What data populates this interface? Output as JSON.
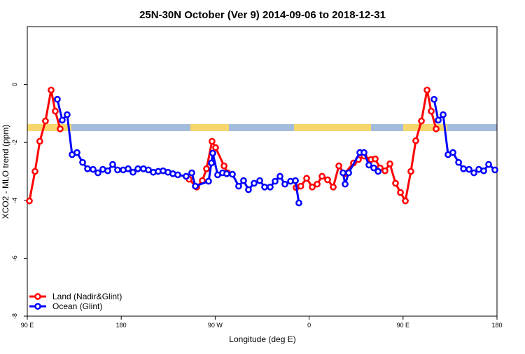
{
  "chart_data": {
    "type": "line",
    "title": "25N-30N October (Ver 9)   2014-09-06 to 2018-12-31",
    "x_label": "Longitude (deg E)",
    "y_label": "XCO2 - MLO trend (ppm)",
    "xlim": [
      90,
      540
    ],
    "xticks": [
      {
        "value": 90,
        "label": "90 E"
      },
      {
        "value": 180,
        "label": "180"
      },
      {
        "value": 270,
        "label": "90 W"
      },
      {
        "value": 360,
        "label": "0"
      },
      {
        "value": 450,
        "label": "90 E"
      },
      {
        "value": 540,
        "label": "180"
      }
    ],
    "ylim": [
      -8,
      2
    ],
    "yticks": [
      -8,
      -6,
      -4,
      -2,
      0
    ],
    "legend": "bottom-left",
    "series": [
      {
        "name": "Land (Nadir&Glint)",
        "color": "#ff0000",
        "x": [
          92,
          97.4,
          102,
          107.4,
          112.8,
          116.8,
          121.5,
          null,
          245,
          252.3,
          257.7,
          261.7,
          267,
          270.4,
          278.5,
          281.8,
          null,
          347.5,
          352,
          357.6,
          363,
          367.7,
          372.4,
          377.7,
          383.1,
          388.5,
          393.8,
          402.5,
          407.2,
          412.6,
          419.3,
          423.3,
          428,
          432.7,
          437.4,
          442.8,
          447.5,
          452.2,
          457.5,
          462.2,
          467.6,
          473,
          477,
          481.7
        ],
        "values": [
          -4.02,
          -3.0,
          -1.96,
          -1.26,
          -0.19,
          -0.92,
          -1.53,
          null,
          -3.27,
          -3.54,
          -3.32,
          -2.91,
          -1.96,
          -2.18,
          -2.81,
          -3.05,
          null,
          -3.56,
          -3.51,
          -3.24,
          -3.54,
          -3.44,
          -3.17,
          -3.29,
          -3.54,
          -2.81,
          -3.08,
          -2.71,
          -2.59,
          -2.47,
          -2.59,
          -2.57,
          -2.88,
          -2.98,
          -2.74,
          -3.41,
          -3.73,
          -4.02,
          -3.0,
          -1.94,
          -1.26,
          -0.19,
          -0.92,
          -1.53
        ]
      },
      {
        "name": "Ocean (Glint)",
        "color": "#0000ff",
        "x": [
          118.8,
          123.5,
          128.2,
          132.9,
          137.6,
          143,
          147.7,
          153,
          157.7,
          162.4,
          167.1,
          171.8,
          176.5,
          181.9,
          186.6,
          191.3,
          196,
          201.3,
          206,
          210.7,
          215.4,
          220.1,
          224.8,
          229.5,
          234.2,
          242.2,
          247.6,
          251,
          263.7,
          266.4,
          267.7,
          272.4,
          277.1,
          281.1,
          286.5,
          292.5,
          297.2,
          301.9,
          307.3,
          312.7,
          317.4,
          322.7,
          327.4,
          332.1,
          336.8,
          342.2,
          346.9,
          350.2,
          null,
          392.5,
          394.5,
          397.9,
          408.6,
          412.6,
          417.3,
          422,
          426.1,
          null,
          479.7,
          483.7,
          488.4,
          493.1,
          497.8,
          503.2,
          507.9,
          513.2,
          517.9,
          522.6,
          527.3,
          532,
          538
        ],
        "values": [
          -0.51,
          -1.23,
          -1.04,
          -2.42,
          -2.35,
          -2.69,
          -2.91,
          -2.93,
          -3.05,
          -2.93,
          -2.98,
          -2.76,
          -2.95,
          -2.95,
          -2.91,
          -3.03,
          -2.91,
          -2.91,
          -2.95,
          -3.03,
          -3.0,
          -2.98,
          -3.03,
          -3.08,
          -3.12,
          -3.17,
          -3.05,
          -3.51,
          -3.34,
          -2.71,
          -2.37,
          -3.12,
          -3.05,
          -3.08,
          -3.1,
          -3.51,
          -3.32,
          -3.63,
          -3.41,
          -3.32,
          -3.54,
          -3.54,
          -3.34,
          -3.17,
          -3.44,
          -3.34,
          -3.32,
          -4.09,
          null,
          -3.05,
          -3.44,
          -3.05,
          -2.35,
          -2.35,
          -2.78,
          -2.88,
          -3.0,
          null,
          -0.51,
          -1.23,
          -1.04,
          -2.42,
          -2.35,
          -2.69,
          -2.91,
          -2.93,
          -3.05,
          -2.93,
          -2.98,
          -2.76,
          -2.95
        ]
      }
    ]
  }
}
